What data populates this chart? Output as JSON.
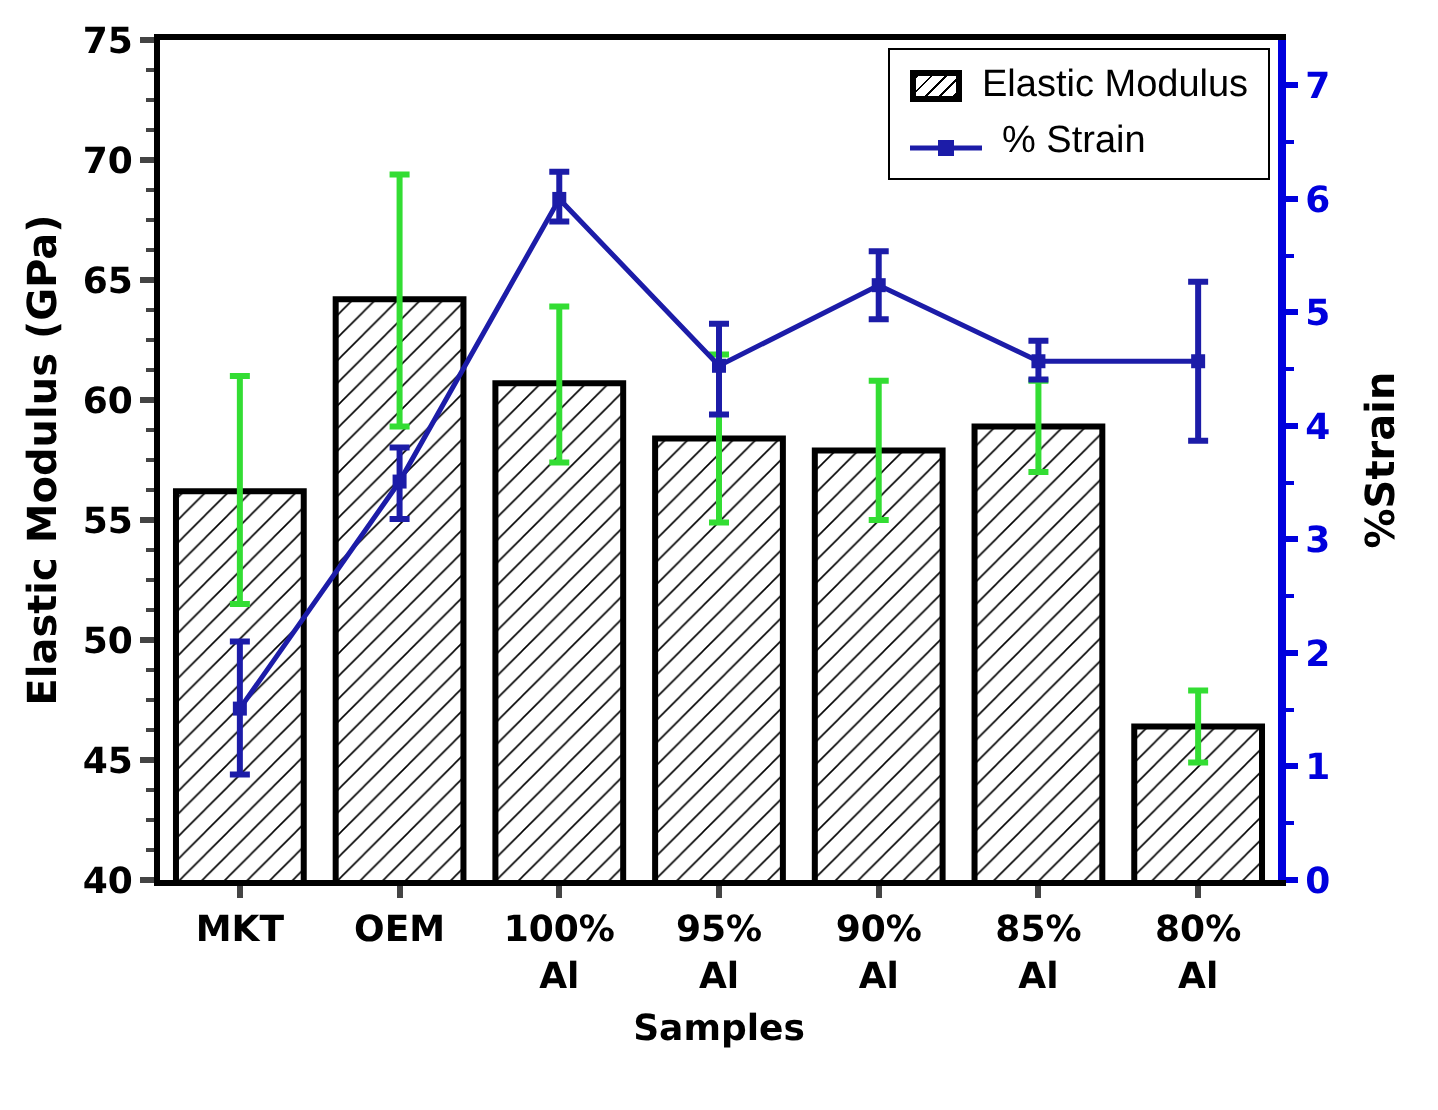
{
  "chart_data": {
    "type": "bar",
    "xlabel": "Samples",
    "ylabel": "Elastic Modulus (GPa)",
    "y2label": "%Strain",
    "categories": [
      "MKT",
      "OEM",
      "100% Al",
      "95% Al",
      "90% Al",
      "85% Al",
      "80% Al"
    ],
    "series": [
      {
        "name": "Elastic Modulus",
        "color": "#000000",
        "values": [
          56.2,
          64.2,
          60.7,
          58.4,
          57.9,
          58.9,
          46.4
        ],
        "errors": [
          [
            51.5,
            61.0
          ],
          [
            58.9,
            69.4
          ],
          [
            57.4,
            63.9
          ],
          [
            54.9,
            61.9
          ],
          [
            55.0,
            60.8
          ],
          [
            57.0,
            60.8
          ],
          [
            44.9,
            47.9
          ]
        ]
      },
      {
        "name": "% Strain",
        "type": "line",
        "axis": "y2",
        "color": "#1c1ca8",
        "values": [
          1.51,
          3.51,
          6.0,
          4.53,
          5.24,
          4.57,
          4.57
        ],
        "errors": [
          [
            0.93,
            2.1
          ],
          [
            3.18,
            3.81
          ],
          [
            5.8,
            6.24
          ],
          [
            4.1,
            4.9
          ],
          [
            4.94,
            5.54
          ],
          [
            4.41,
            4.75
          ],
          [
            3.87,
            5.27
          ]
        ]
      }
    ],
    "ylim": [
      40,
      75
    ],
    "yticks": [
      40,
      45,
      50,
      55,
      60,
      65,
      70,
      75
    ],
    "y2lim": [
      0,
      7.4
    ],
    "y2ticks": [
      0,
      1,
      2,
      3,
      4,
      5,
      6,
      7
    ],
    "grid": false,
    "legend": "top right",
    "marker": "square",
    "line_style": "solid"
  }
}
